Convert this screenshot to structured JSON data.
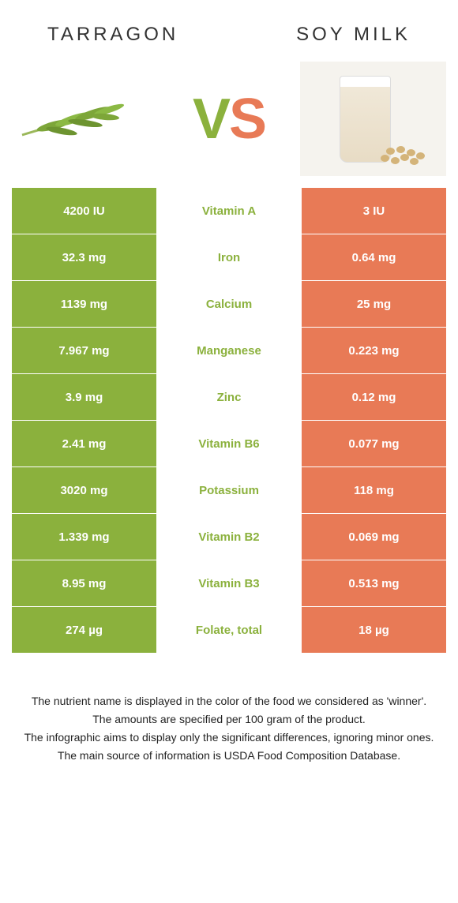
{
  "header": {
    "left_title": "Tarragon",
    "right_title": "Soy milk"
  },
  "vs": {
    "v": "V",
    "s": "S"
  },
  "colors": {
    "left": "#8bb13d",
    "right": "#e87a56",
    "text": "#333333"
  },
  "rows": [
    {
      "left": "4200 IU",
      "label": "Vitamin A",
      "right": "3 IU",
      "winner": "left"
    },
    {
      "left": "32.3 mg",
      "label": "Iron",
      "right": "0.64 mg",
      "winner": "left"
    },
    {
      "left": "1139 mg",
      "label": "Calcium",
      "right": "25 mg",
      "winner": "left"
    },
    {
      "left": "7.967 mg",
      "label": "Manganese",
      "right": "0.223 mg",
      "winner": "left"
    },
    {
      "left": "3.9 mg",
      "label": "Zinc",
      "right": "0.12 mg",
      "winner": "left"
    },
    {
      "left": "2.41 mg",
      "label": "Vitamin B6",
      "right": "0.077 mg",
      "winner": "left"
    },
    {
      "left": "3020 mg",
      "label": "Potassium",
      "right": "118 mg",
      "winner": "left"
    },
    {
      "left": "1.339 mg",
      "label": "Vitamin B2",
      "right": "0.069 mg",
      "winner": "left"
    },
    {
      "left": "8.95 mg",
      "label": "Vitamin B3",
      "right": "0.513 mg",
      "winner": "left"
    },
    {
      "left": "274 µg",
      "label": "Folate, total",
      "right": "18 µg",
      "winner": "left"
    }
  ],
  "footer": {
    "line1": "The nutrient name is displayed in the color of the food we considered as 'winner'.",
    "line2": "The amounts are specified per 100 gram of the product.",
    "line3": "The infographic aims to display only the significant differences, ignoring minor ones.",
    "line4": "The main source of information is USDA Food Composition Database."
  }
}
